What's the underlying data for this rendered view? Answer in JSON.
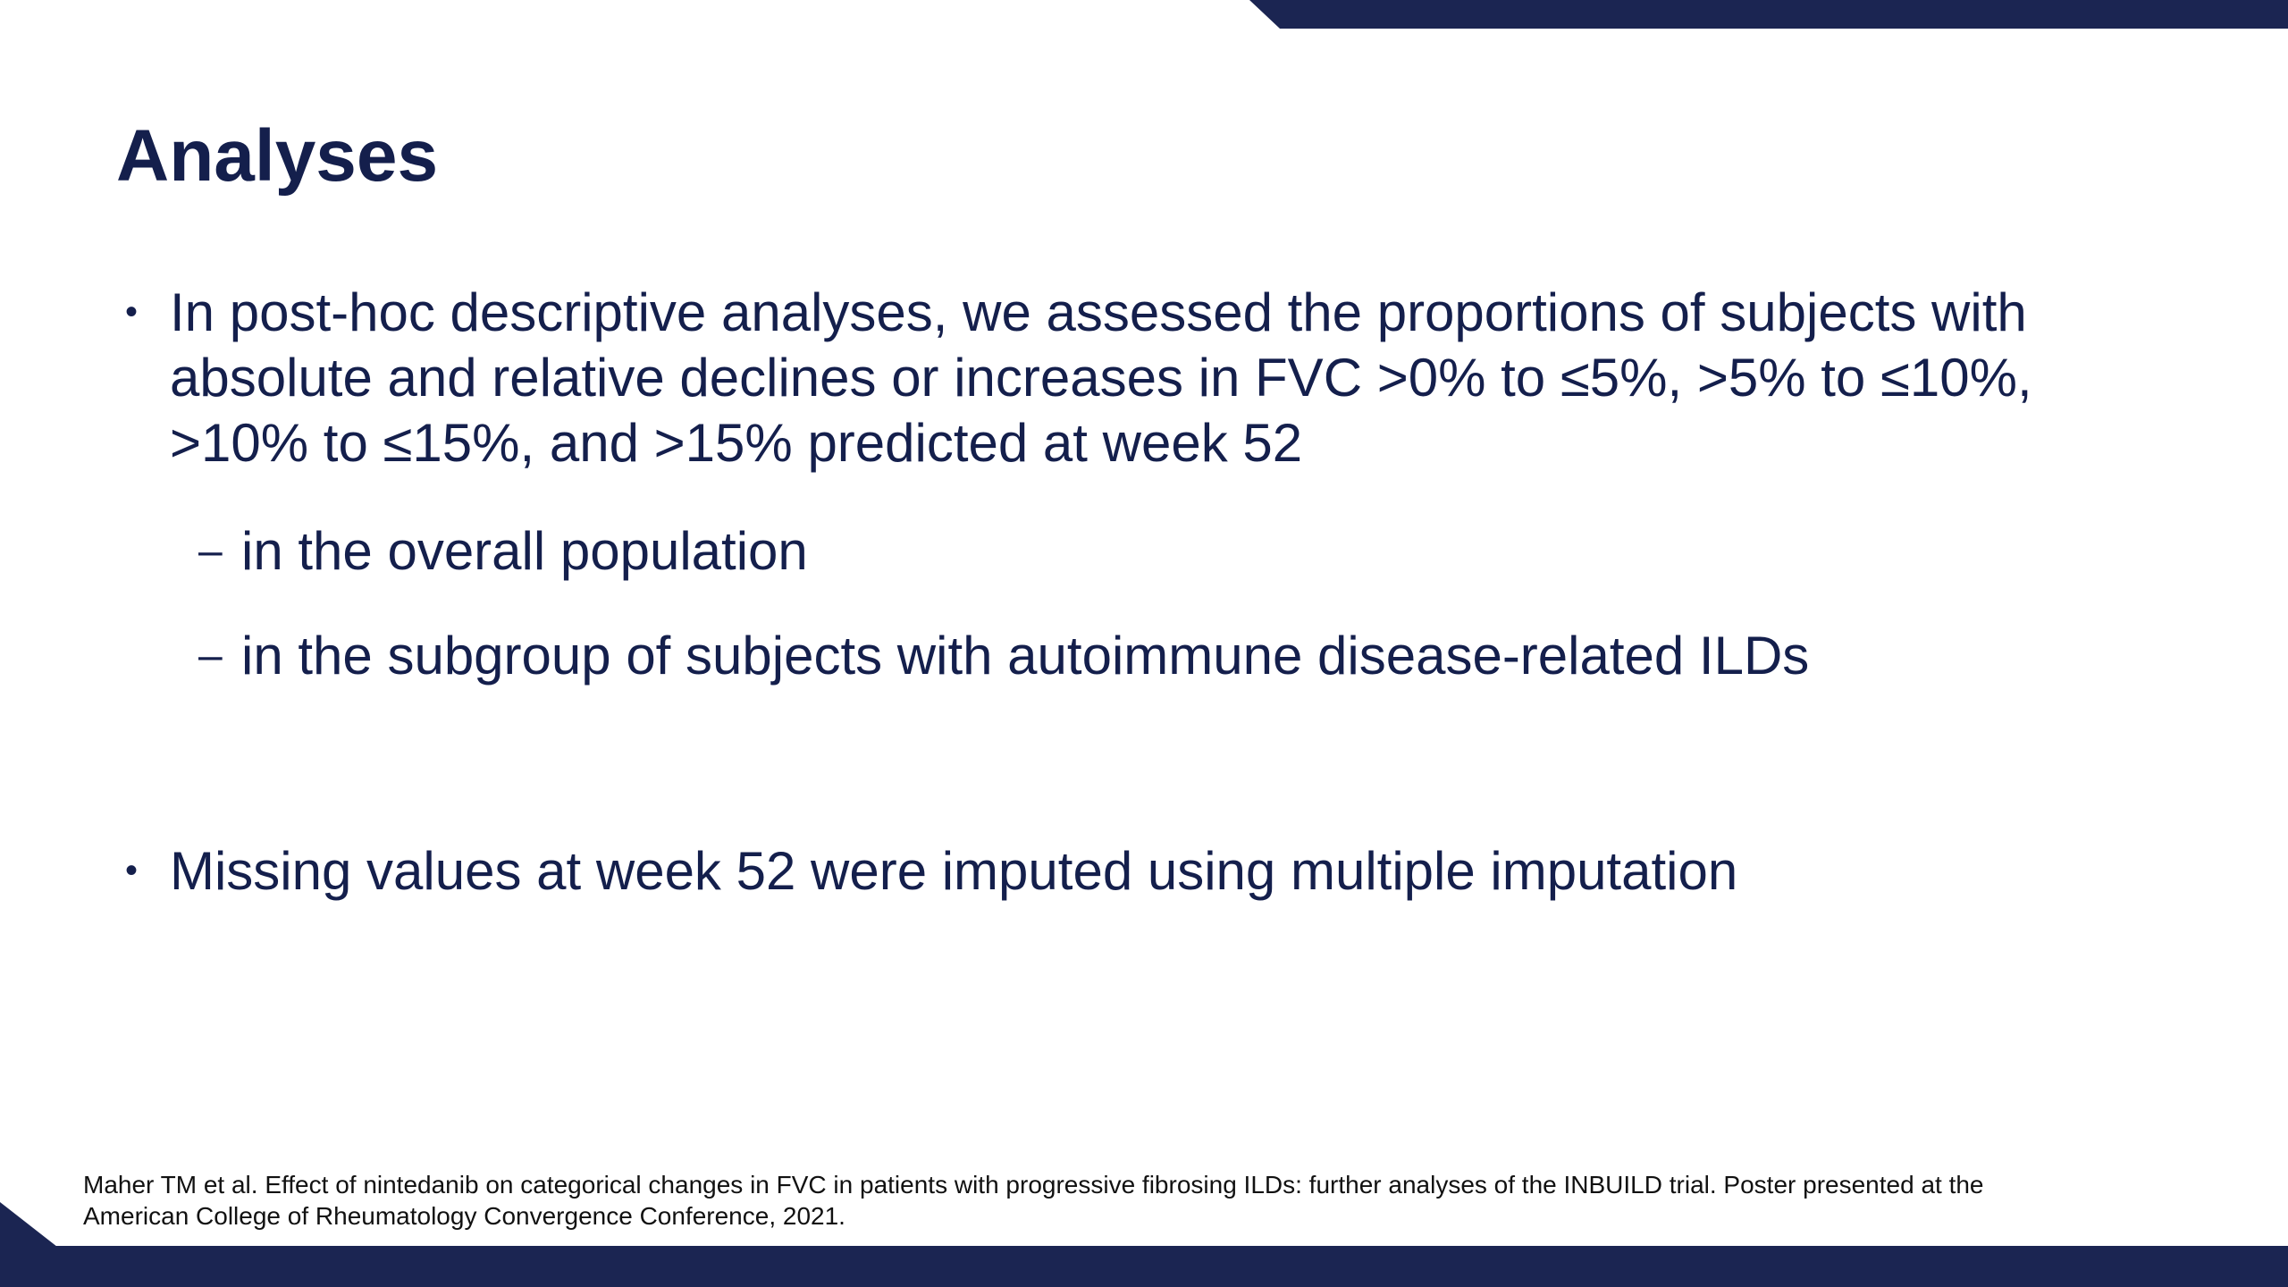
{
  "slide": {
    "title": "Analyses",
    "bullets": [
      {
        "marker": "•",
        "text": "In post-hoc descriptive analyses, we assessed the proportions of subjects with absolute and relative declines or increases in FVC >0% to ≤5%, >5% to ≤10%, >10% to ≤15%, and >15% predicted at week 52",
        "sub_items": [
          {
            "marker": "–",
            "text": "in the overall population"
          },
          {
            "marker": "–",
            "text": "in the subgroup of subjects with autoimmune disease-related ILDs"
          }
        ]
      },
      {
        "marker": "•",
        "text": "Missing values at week 52 were imputed using multiple imputation"
      }
    ],
    "reference": {
      "line1": "Maher TM et al. Effect of nintedanib on categorical changes in FVC in patients with progressive fibrosing ILDs: further analyses of the INBUILD trial. Poster presented at the",
      "line2": "American College of Rheumatology Convergence Conference, 2021."
    }
  },
  "colors": {
    "accent": "#1b2552",
    "text": "#141f4c",
    "background": "#ffffff"
  }
}
